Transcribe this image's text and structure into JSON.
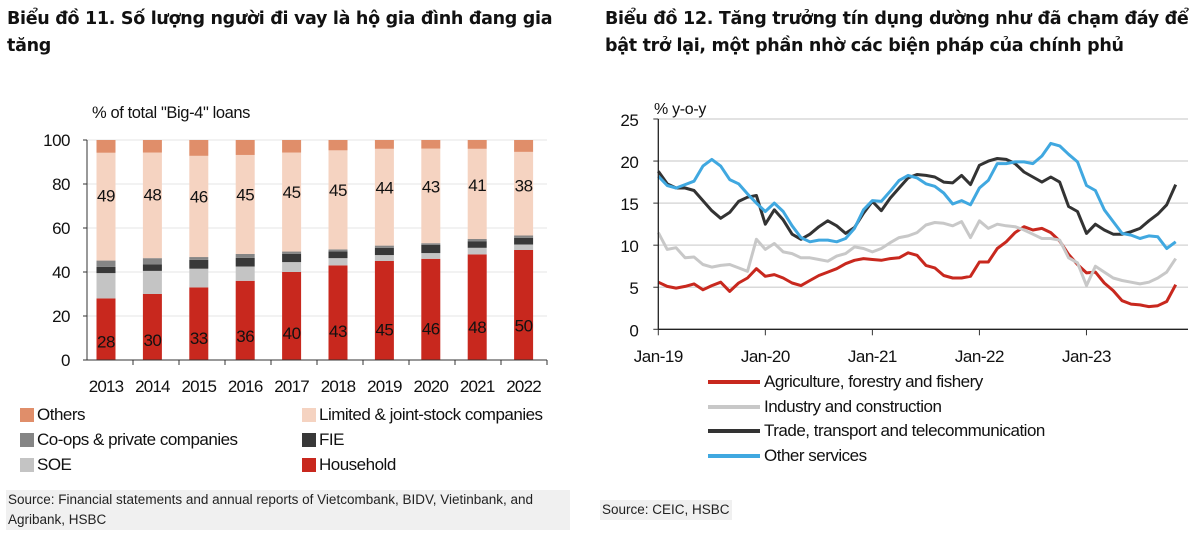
{
  "charts": {
    "left": {
      "title": "Biểu đồ 11. Số lượng người đi vay là hộ gia đình đang gia tăng",
      "source": "Source: Financial statements and annual reports of Vietcombank, BIDV, Vietinbank, and Agribank, HSBC"
    },
    "right": {
      "title": "Biểu đồ 12. Tăng trưởng tín dụng dường như đã chạm đáy để bật trở lại, một phần nhờ các biện pháp của chính phủ",
      "source": "Source: CEIC, HSBC"
    }
  },
  "chart_data": [
    {
      "type": "bar",
      "stacked": true,
      "title": "Biểu đồ 11. Số lượng người đi vay là hộ gia đình đang gia tăng",
      "ylabel": "% of total \"Big-4\" loans",
      "xlabel": "",
      "ylim": [
        0,
        100
      ],
      "yticks": [
        0,
        20,
        40,
        60,
        80,
        100
      ],
      "grid": true,
      "categories": [
        "2013",
        "2014",
        "2015",
        "2016",
        "2017",
        "2018",
        "2019",
        "2020",
        "2021",
        "2022"
      ],
      "series": [
        {
          "name": "Household",
          "color": "#c8281e",
          "values": [
            28,
            30,
            33,
            36,
            40,
            43,
            45,
            46,
            48,
            50
          ],
          "labels": [
            28,
            30,
            33,
            36,
            40,
            43,
            45,
            46,
            48,
            50
          ]
        },
        {
          "name": "SOE",
          "color": "#c4c4c4",
          "values": [
            11.5,
            10.5,
            8.5,
            6.5,
            4.5,
            3.3,
            2.7,
            2.6,
            3.0,
            2.5
          ]
        },
        {
          "name": "FIE",
          "color": "#383838",
          "values": [
            2.8,
            2.9,
            4.0,
            3.9,
            3.8,
            3.0,
            3.3,
            3.8,
            3.0,
            3.0
          ]
        },
        {
          "name": "Co-ops & private companies",
          "color": "#858585",
          "values": [
            2.9,
            2.9,
            1.3,
            1.8,
            1.0,
            1.0,
            1.0,
            0.7,
            1.0,
            1.1
          ]
        },
        {
          "name": "Limited & joint-stock companies",
          "color": "#f5d3c1",
          "values": [
            49,
            48,
            46,
            45,
            45,
            45,
            44,
            43,
            41,
            38
          ],
          "labels": [
            49,
            48,
            46,
            45,
            45,
            45,
            44,
            43,
            41,
            38
          ]
        },
        {
          "name": "Others",
          "color": "#e08e6a",
          "values": [
            5.8,
            5.7,
            7.2,
            6.8,
            5.7,
            4.7,
            4.0,
            3.9,
            4.0,
            5.4
          ]
        }
      ],
      "legend": {
        "placement": "bottom",
        "entries": [
          "Others",
          "Limited & joint-stock companies",
          "Co-ops & private companies",
          "FIE",
          "SOE",
          "Household"
        ]
      }
    },
    {
      "type": "line",
      "title": "Biểu đồ 12. Tăng trưởng tín dụng dường như đã chạm đáy để bật trở lại, một phần nhờ các biện pháp của chính phủ",
      "ylabel": "% y-o-y",
      "xlabel": "",
      "ylim": [
        0,
        25
      ],
      "yticks": [
        0,
        5,
        10,
        15,
        20,
        25
      ],
      "grid": true,
      "x_start": "Jan-19",
      "x_end": "Nov-23",
      "frequency": "monthly",
      "xticks": [
        "Jan-19",
        "Jan-20",
        "Jan-21",
        "Jan-22",
        "Jan-23"
      ],
      "series": [
        {
          "name": "Agriculture, forestry and fishery",
          "color": "#c8281e",
          "values": [
            5.6,
            5.1,
            4.9,
            5.1,
            5.4,
            4.7,
            5.2,
            5.6,
            4.5,
            5.5,
            6.1,
            7.2,
            6.3,
            6.5,
            6.1,
            5.5,
            5.2,
            5.8,
            6.4,
            6.8,
            7.2,
            7.8,
            8.2,
            8.4,
            8.3,
            8.2,
            8.4,
            8.5,
            9.1,
            8.8,
            7.6,
            7.3,
            6.4,
            6.1,
            6.1,
            6.3,
            8.0,
            8.0,
            9.6,
            10.4,
            11.5,
            12.2,
            11.8,
            12.0,
            11.5,
            10.5,
            8.9,
            7.7,
            6.7,
            6.8,
            5.5,
            4.6,
            3.4,
            3.0,
            2.9,
            2.7,
            2.8,
            3.3,
            5.3
          ]
        },
        {
          "name": "Industry and construction",
          "color": "#c8c8c8",
          "values": [
            11.5,
            9.5,
            9.7,
            8.5,
            8.6,
            7.7,
            7.4,
            7.6,
            7.7,
            7.3,
            6.9,
            10.7,
            9.5,
            10.2,
            9.2,
            9.0,
            8.5,
            8.5,
            8.3,
            8.1,
            8.7,
            9.0,
            9.8,
            9.6,
            9.2,
            9.6,
            10.3,
            10.9,
            11.1,
            11.5,
            12.4,
            12.7,
            12.6,
            12.3,
            12.8,
            10.9,
            12.9,
            12.0,
            12.5,
            12.3,
            12.2,
            11.8,
            11.3,
            10.8,
            10.8,
            10.6,
            8.5,
            7.9,
            5.2,
            7.5,
            6.8,
            6.1,
            5.8,
            5.6,
            5.4,
            5.6,
            6.1,
            6.8,
            8.4
          ]
        },
        {
          "name": "Trade, transport and telecommunication",
          "color": "#333333",
          "values": [
            18.8,
            17.3,
            16.8,
            16.8,
            16.5,
            15.3,
            14.1,
            13.2,
            13.9,
            15.2,
            15.7,
            15.9,
            12.5,
            14.2,
            13.0,
            11.3,
            10.7,
            11.3,
            12.2,
            12.9,
            12.3,
            11.4,
            12.1,
            13.8,
            15.2,
            14.1,
            15.6,
            16.8,
            18.0,
            18.4,
            18.3,
            18.1,
            17.5,
            17.4,
            18.3,
            17.2,
            19.5,
            20.0,
            20.3,
            20.2,
            19.7,
            18.7,
            18.1,
            17.5,
            18.1,
            17.5,
            14.6,
            14.0,
            11.4,
            12.5,
            11.8,
            11.3,
            11.3,
            11.6,
            12.0,
            12.9,
            13.7,
            14.8,
            17.2
          ]
        },
        {
          "name": "Other services",
          "color": "#40a8e0",
          "values": [
            18.2,
            17.1,
            16.8,
            17.2,
            17.6,
            19.4,
            20.2,
            19.4,
            17.8,
            17.3,
            16.1,
            15.0,
            14.0,
            15.0,
            14.0,
            12.3,
            10.9,
            10.4,
            10.6,
            10.6,
            10.4,
            10.8,
            12.0,
            14.2,
            15.3,
            15.2,
            16.4,
            17.7,
            18.3,
            18.0,
            17.3,
            17.0,
            16.2,
            14.9,
            15.3,
            14.8,
            16.8,
            17.7,
            19.7,
            19.7,
            19.9,
            19.9,
            19.7,
            20.6,
            22.1,
            21.8,
            20.8,
            19.9,
            17.1,
            16.5,
            14.2,
            12.8,
            11.4,
            11.2,
            10.8,
            11.1,
            11.0,
            9.6,
            10.4
          ]
        }
      ],
      "legend": {
        "placement": "bottom",
        "entries": [
          "Agriculture, forestry and fishery",
          "Industry and construction",
          "Trade, transport and telecommunication",
          "Other services"
        ]
      }
    }
  ]
}
